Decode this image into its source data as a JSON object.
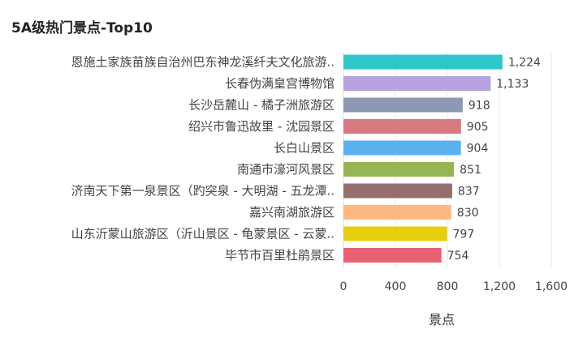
{
  "chart_data": {
    "type": "bar",
    "orientation": "horizontal",
    "title": "5A级热门景点-Top10",
    "xlabel": "景点",
    "ylabel": "",
    "xlim": [
      0,
      1600
    ],
    "xticks": [
      0,
      400,
      800,
      1200,
      1600
    ],
    "xtick_labels": [
      "0",
      "400",
      "800",
      "1,200",
      "1,600"
    ],
    "grid": true,
    "categories": [
      "恩施土家族苗族自治州巴东神龙溪纤夫文化旅游..",
      "长春伪满皇宫博物馆",
      "长沙岳麓山 - 橘子洲旅游区",
      "绍兴市鲁迅故里 - 沈园景区",
      "长白山景区",
      "南通市濠河风景区",
      "济南天下第一泉景区（趵突泉 - 大明湖 - 五龙潭..",
      "嘉兴南湖旅游区",
      "山东沂蒙山旅游区（沂山景区 - 龟蒙景区 - 云蒙..",
      "毕节市百里杜鹃景区"
    ],
    "values": [
      1224,
      1133,
      918,
      905,
      904,
      851,
      837,
      830,
      797,
      754
    ],
    "value_labels": [
      "1,224",
      "1,133",
      "918",
      "905",
      "904",
      "851",
      "837",
      "830",
      "797",
      "754"
    ],
    "colors": [
      "#2ec7c9",
      "#b6a2de",
      "#8d98b3",
      "#d87a80",
      "#5ab1ef",
      "#97b552",
      "#956f6d",
      "#ffb980",
      "#e5cf0d",
      "#e96070"
    ]
  }
}
